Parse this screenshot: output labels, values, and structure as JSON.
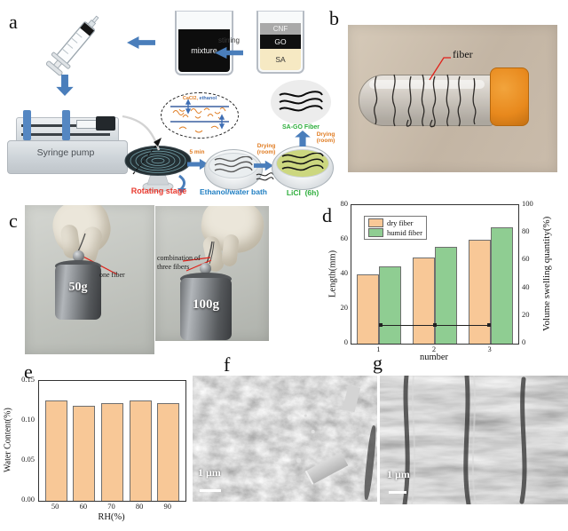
{
  "panels": {
    "a": {
      "letter": "a",
      "mixture_label": "mixture",
      "stirring_label": "stirring",
      "layers": {
        "top": "CNF",
        "mid": "GO",
        "bottom": "SA"
      },
      "pump_label": "Syringe pump",
      "stage_label": "Rotating stage",
      "inset_salt": "CaCl2,",
      "inset_solvent": " ethanol",
      "time_label": "5 min",
      "bath_label": "Ethanol/water bath",
      "drying_mid_label": "Drying (room)",
      "licl_label": "LiCl  (6h)",
      "drying_right_label": "Drying (room)",
      "product_label": "SA-GO Fiber"
    },
    "b": {
      "letter": "b",
      "fiber_label": "fiber"
    },
    "c": {
      "letter": "c",
      "left_note": "one fiber",
      "left_weight": "50g",
      "right_note": "combination of three fibers",
      "right_weight": "100g"
    },
    "d": {
      "letter": "d"
    },
    "e": {
      "letter": "e"
    },
    "f": {
      "letter": "f",
      "scalebar": "1 μm"
    },
    "g": {
      "letter": "g",
      "scalebar": "1 μm"
    }
  },
  "colors": {
    "arrow_blue": "#4a7ebb",
    "dry_bar": "#f8c897",
    "humid_bar": "#8fcd92",
    "stage_red": "#e8392e",
    "drying_orange": "#e07b20",
    "green_text": "#2eae3c",
    "bath_blue": "#1f7ec2",
    "cap_orange": "#e8891d"
  },
  "chart_data": [
    {
      "panel": "d",
      "type": "bar+line",
      "categories": [
        "1",
        "2",
        "3"
      ],
      "series": [
        {
          "name": "dry fiber",
          "type": "bar",
          "axis": "left",
          "color": "#f8c897",
          "values": [
            40,
            50,
            60
          ]
        },
        {
          "name": "humid fiber",
          "type": "bar",
          "axis": "left",
          "color": "#8fcd92",
          "values": [
            44.5,
            56,
            67
          ]
        },
        {
          "name": "volume swelling",
          "type": "line",
          "axis": "right",
          "color": "#222222",
          "values": [
            12,
            12,
            12
          ]
        }
      ],
      "xlabel": "number",
      "ylabel_left": "Length(mm)",
      "ylabel_right": "Volume swelling quantity(%)",
      "ylim_left": [
        0,
        80
      ],
      "ylim_right": [
        0,
        100
      ],
      "left_ticks": [
        0,
        20,
        40,
        60,
        80
      ],
      "right_ticks": [
        0,
        20,
        40,
        60,
        80,
        100
      ],
      "legend_position": "upper-left",
      "grid": false
    },
    {
      "panel": "e",
      "type": "bar",
      "categories": [
        "50",
        "60",
        "70",
        "80",
        "90"
      ],
      "values": [
        0.126,
        0.119,
        0.122,
        0.126,
        0.122
      ],
      "bar_color": "#f8c897",
      "xlabel": "RH(%)",
      "ylabel": "Water Content(%)",
      "ylim": [
        0,
        0.15
      ],
      "yticks": [
        "0.00",
        "0.05",
        "0.10",
        "0.15"
      ],
      "grid": false
    }
  ]
}
